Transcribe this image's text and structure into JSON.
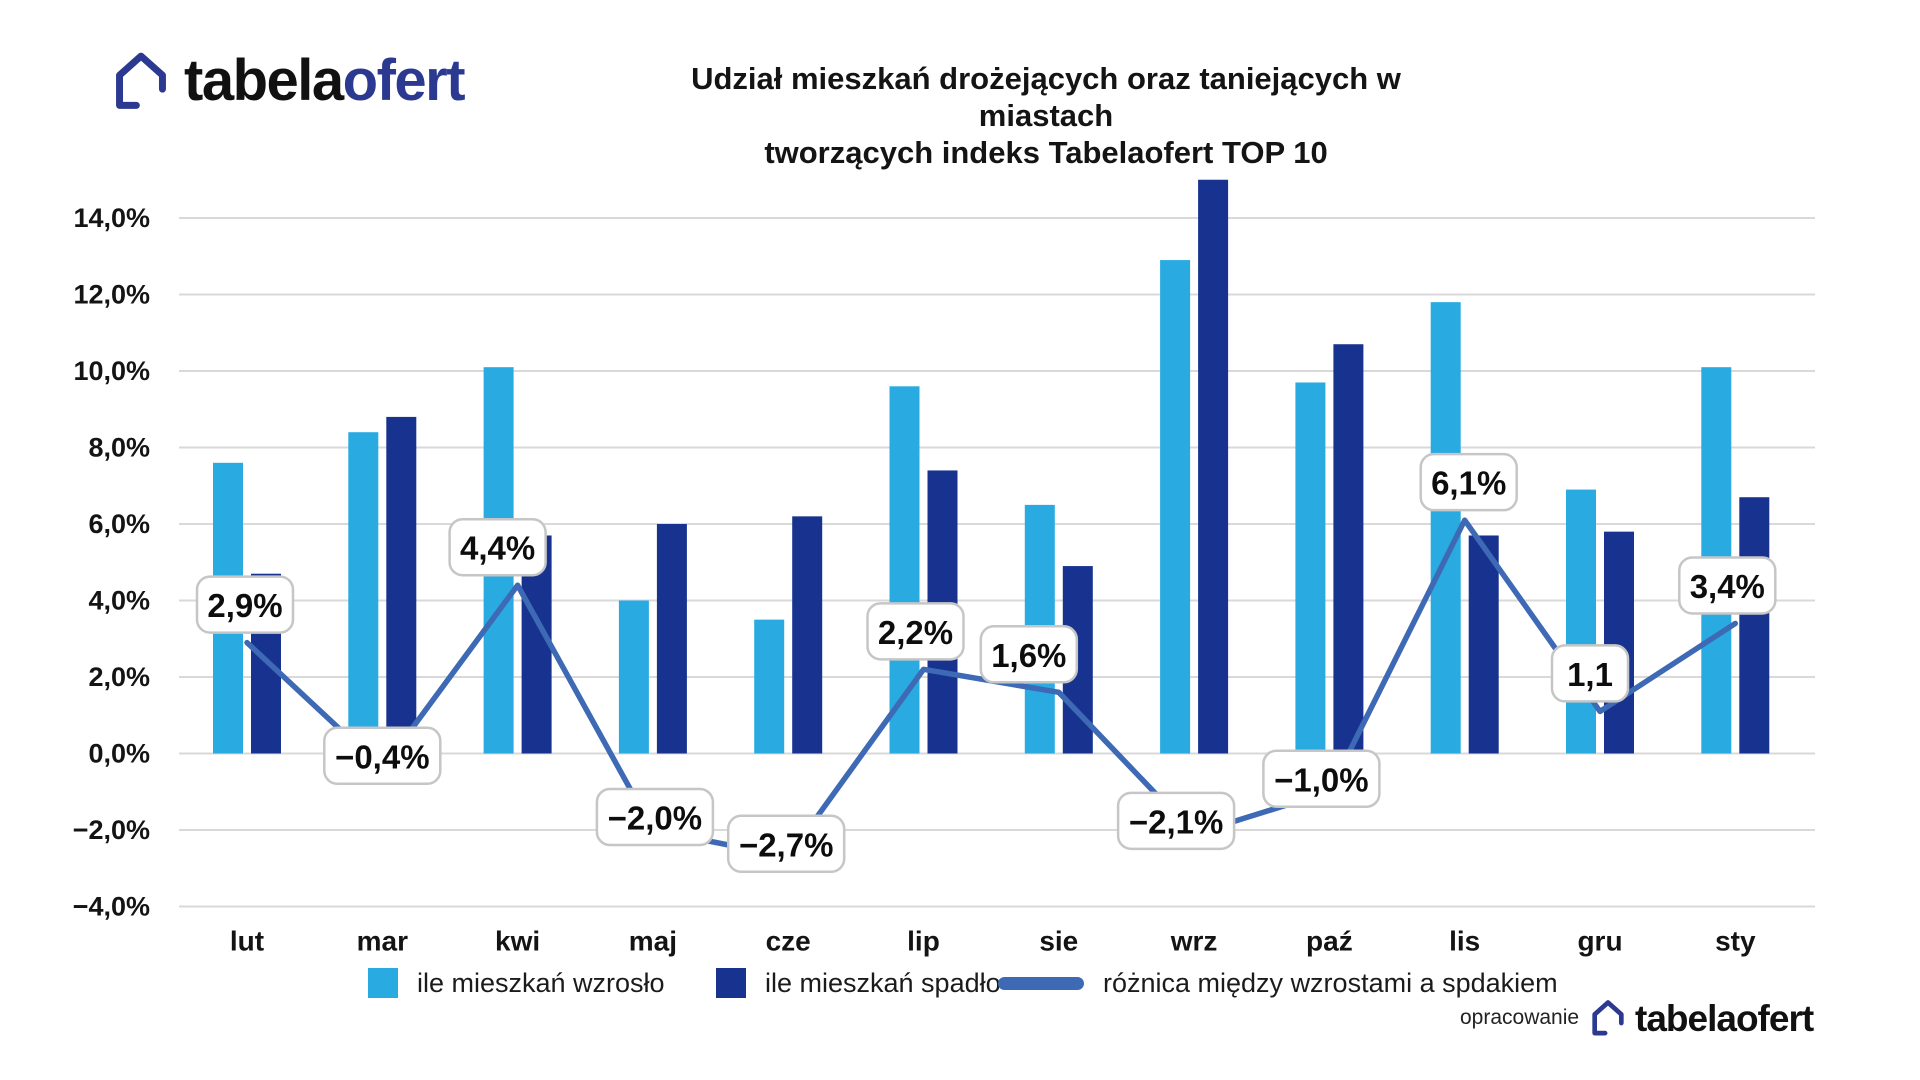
{
  "logo": {
    "text_black": "tabela",
    "text_blue": "ofert"
  },
  "title": {
    "line1": "Udział mieszkań drożejących oraz taniejących w miastach",
    "line2": "tworzących indeks Tabelaofert TOP 10"
  },
  "chart_data": {
    "type": "bar",
    "title": "Udział mieszkań drożejących oraz taniejących w miastach tworzących indeks Tabelaofert TOP 10",
    "categories": [
      "lut",
      "mar",
      "kwi",
      "maj",
      "cze",
      "lip",
      "sie",
      "wrz",
      "paź",
      "lis",
      "gru",
      "sty"
    ],
    "series": [
      {
        "name": "ile mieszkań wzrosło",
        "type": "bar",
        "color": "#29ABE2",
        "values": [
          7.6,
          8.4,
          10.1,
          4.0,
          3.5,
          9.6,
          6.5,
          12.9,
          9.7,
          11.8,
          6.9,
          10.1
        ]
      },
      {
        "name": "ile mieszkań spadło",
        "type": "bar",
        "color": "#17338F",
        "values": [
          4.7,
          8.8,
          5.7,
          6.0,
          6.2,
          7.4,
          4.9,
          15.0,
          10.7,
          5.7,
          5.8,
          6.7
        ]
      },
      {
        "name": "różnica między wzrostami a spdakiem",
        "type": "line",
        "color": "#3E69B5",
        "values": [
          2.9,
          -0.4,
          4.4,
          -2.0,
          -2.7,
          2.2,
          1.6,
          -2.1,
          -1.0,
          6.1,
          1.1,
          3.4
        ],
        "point_labels": [
          "2,9%",
          "−0,4%",
          "4,4%",
          "−2,0%",
          "−2,7%",
          "2,2%",
          "1,6%",
          "−2,1%",
          "−1,0%",
          "6,1%",
          "1,1",
          "3,4%"
        ]
      }
    ],
    "ylim": [
      -4,
      15
    ],
    "ytick_labels": [
      "14,0%",
      "12,0%",
      "10,0%",
      "8,0%",
      "6,0%",
      "4,0%",
      "2,0%",
      "0,0%",
      "−2,0%",
      "−4,0%"
    ],
    "ytick_values": [
      14,
      12,
      10,
      8,
      6,
      4,
      2,
      0,
      -2,
      -4
    ],
    "grid": true,
    "legend_position": "bottom"
  },
  "footer": {
    "credit": "opracowanie"
  },
  "colors": {
    "bars_up": "#29ABE2",
    "bars_down": "#17338F",
    "diff_line": "#3E69B5",
    "brand_navy": "#2B3990",
    "gridline": "#D9D9D9",
    "label_box_border": "#C6C6C6",
    "text": "#141414"
  }
}
